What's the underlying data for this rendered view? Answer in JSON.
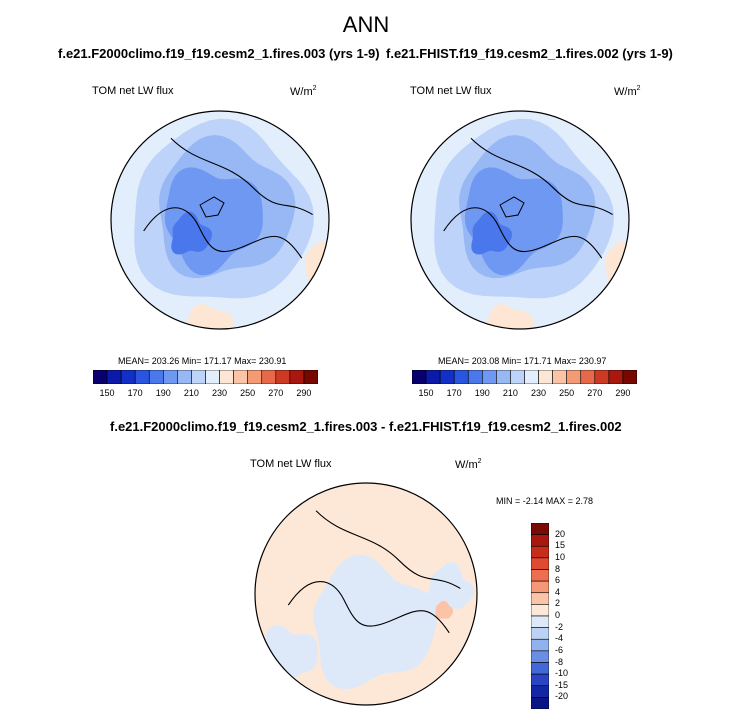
{
  "page_title": "ANN",
  "chart_data": [
    {
      "type": "heatmap",
      "title": "f.e21.F2000climo.f19_f19.cesm2_1.fires.003 (yrs 1-9)",
      "variable_label": "TOM net LW flux",
      "units_base": "W/m",
      "units_exp": "2",
      "stats": {
        "mean": 203.26,
        "min": 171.17,
        "max": 230.91,
        "text": "MEAN= 203.26  Min= 171.17  Max= 230.91"
      },
      "projection": "north-polar-stereographic",
      "colorbar": {
        "orientation": "horizontal",
        "levels": [
          150,
          160,
          170,
          180,
          190,
          200,
          210,
          220,
          230,
          240,
          250,
          260,
          270,
          280,
          290
        ],
        "tick_labels": [
          "150",
          "170",
          "190",
          "210",
          "230",
          "250",
          "270",
          "290"
        ],
        "colors": [
          "#08006e",
          "#0b1aa8",
          "#1230c8",
          "#2a55e0",
          "#4a78ec",
          "#6f98f2",
          "#97b8f5",
          "#bdd3fa",
          "#e3eefc",
          "#fde6d4",
          "#fbc4a6",
          "#f49a74",
          "#e8694a",
          "#cc3a24",
          "#a8180e",
          "#760800"
        ]
      }
    },
    {
      "type": "heatmap",
      "title": "f.e21.FHIST.f19_f19.cesm2_1.fires.002 (yrs 1-9)",
      "variable_label": "TOM net LW flux",
      "units_base": "W/m",
      "units_exp": "2",
      "stats": {
        "mean": 203.08,
        "min": 171.71,
        "max": 230.97,
        "text": "MEAN= 203.08  Min= 171.71  Max= 230.97"
      },
      "projection": "north-polar-stereographic",
      "colorbar": {
        "orientation": "horizontal",
        "levels": [
          150,
          160,
          170,
          180,
          190,
          200,
          210,
          220,
          230,
          240,
          250,
          260,
          270,
          280,
          290
        ],
        "tick_labels": [
          "150",
          "170",
          "190",
          "210",
          "230",
          "250",
          "270",
          "290"
        ],
        "colors": [
          "#08006e",
          "#0b1aa8",
          "#1230c8",
          "#2a55e0",
          "#4a78ec",
          "#6f98f2",
          "#97b8f5",
          "#bdd3fa",
          "#e3eefc",
          "#fde6d4",
          "#fbc4a6",
          "#f49a74",
          "#e8694a",
          "#cc3a24",
          "#a8180e",
          "#760800"
        ]
      }
    },
    {
      "type": "heatmap",
      "title": "f.e21.F2000climo.f19_f19.cesm2_1.fires.003 - f.e21.FHIST.f19_f19.cesm2_1.fires.002",
      "variable_label": "TOM net LW flux",
      "units_base": "W/m",
      "units_exp": "2",
      "stats": {
        "min": -2.14,
        "max": 2.78,
        "text": "MIN =  -2.14 MAX =   2.78"
      },
      "projection": "north-polar-stereographic",
      "colorbar": {
        "orientation": "vertical",
        "tick_labels": [
          "20",
          "15",
          "10",
          "8",
          "6",
          "4",
          "2",
          "0",
          "-2",
          "-4",
          "-6",
          "-8",
          "-10",
          "-15",
          "-20"
        ],
        "colors": [
          "#7a0a04",
          "#a8180e",
          "#c82c1a",
          "#e04a30",
          "#ee6f50",
          "#f59878",
          "#fbc4a6",
          "#fde8d8",
          "#dde9f8",
          "#bcd2f4",
          "#92b2ee",
          "#6a8ee6",
          "#4368d8",
          "#2a44c4",
          "#1426a4",
          "#0a1484"
        ]
      }
    }
  ]
}
